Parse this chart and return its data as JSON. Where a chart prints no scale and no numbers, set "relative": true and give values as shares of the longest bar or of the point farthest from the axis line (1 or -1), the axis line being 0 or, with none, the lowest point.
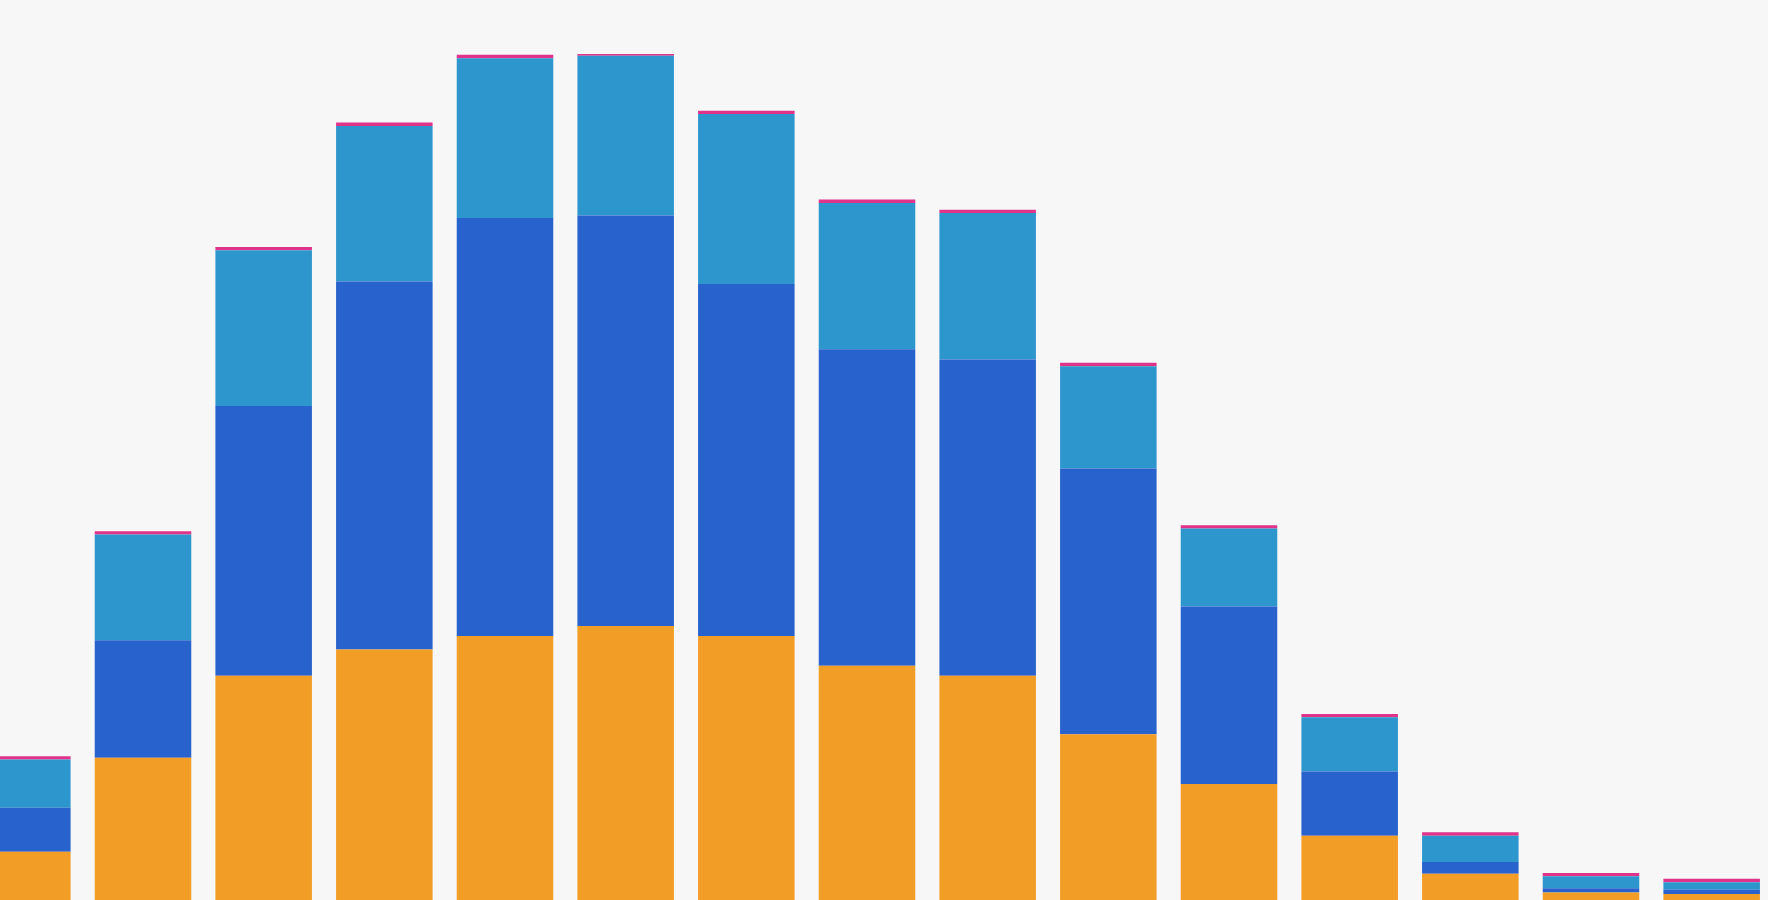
{
  "chart_data": {
    "type": "bar",
    "stacked": true,
    "relative": true,
    "categories": [
      null,
      null,
      null,
      null,
      null,
      null,
      null,
      null,
      null,
      null,
      null,
      null,
      null,
      null,
      null
    ],
    "series": [
      {
        "color": "#f29d25",
        "values": [
          0.057,
          0.168,
          0.265,
          0.296,
          0.312,
          0.324,
          0.312,
          0.277,
          0.265,
          0.196,
          0.137,
          0.076,
          0.031,
          0.009,
          0.007
        ]
      },
      {
        "color": "#2862cc",
        "values": [
          0.052,
          0.139,
          0.319,
          0.435,
          0.494,
          0.485,
          0.416,
          0.374,
          0.374,
          0.314,
          0.21,
          0.076,
          0.014,
          0.005,
          0.005
        ]
      },
      {
        "color": "#2d96cc",
        "values": [
          0.057,
          0.125,
          0.184,
          0.184,
          0.189,
          0.189,
          0.201,
          0.173,
          0.173,
          0.121,
          0.092,
          0.064,
          0.031,
          0.014,
          0.009
        ]
      },
      {
        "color": "#e0338a",
        "values": [
          0.004,
          0.004,
          0.004,
          0.004,
          0.004,
          0.002,
          0.004,
          0.004,
          0.004,
          0.004,
          0.004,
          0.004,
          0.004,
          0.004,
          0.004
        ]
      }
    ]
  }
}
